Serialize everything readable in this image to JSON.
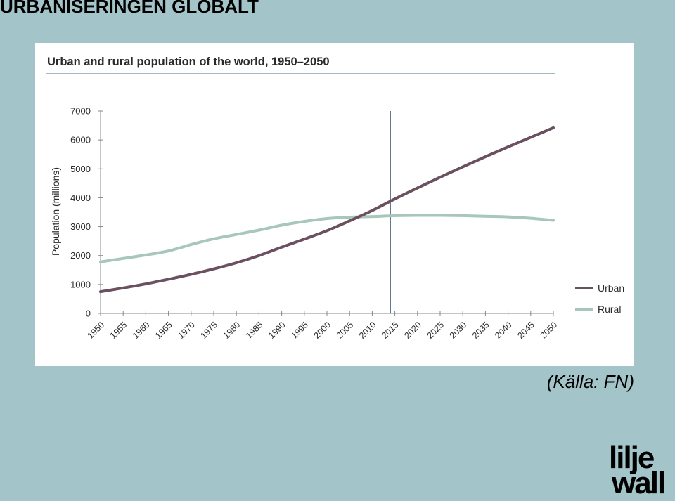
{
  "slide": {
    "title": "URBANISERINGEN GLOBALT",
    "source": "(Källa: FN)",
    "logo_line1": "lilje",
    "logo_line2": "wall"
  },
  "colors": {
    "background": "#a3c4c8",
    "urban": "#6b5060",
    "rural": "#a7c7bb",
    "marker_line": "#3b5b7a",
    "axis": "#888888"
  },
  "chart_data": {
    "type": "line",
    "title": "Urban and rural population of the world, 1950–2050",
    "ylabel": "Population (millions)",
    "xlabel": "",
    "ylim": [
      0,
      7000
    ],
    "yticks": [
      0,
      1000,
      2000,
      3000,
      4000,
      5000,
      6000,
      7000
    ],
    "x": [
      1950,
      1955,
      1960,
      1965,
      1970,
      1975,
      1980,
      1985,
      1990,
      1995,
      2000,
      2005,
      2010,
      2015,
      2020,
      2025,
      2030,
      2035,
      2040,
      2045,
      2050
    ],
    "xticks": [
      "1950",
      "1955",
      "1960",
      "1965",
      "1970",
      "1975",
      "1980",
      "1985",
      "1990",
      "1995",
      "2000",
      "2005",
      "2010",
      "2015",
      "2020",
      "2025",
      "2030",
      "2035",
      "2040",
      "2045",
      "2050"
    ],
    "marker_year": 2014,
    "legend_position": "bottom-right",
    "grid": false,
    "series": [
      {
        "name": "Urban",
        "values": [
          750,
          880,
          1020,
          1180,
          1350,
          1540,
          1750,
          2000,
          2290,
          2570,
          2860,
          3200,
          3560,
          3960,
          4340,
          4710,
          5070,
          5420,
          5760,
          6090,
          6420
        ]
      },
      {
        "name": "Rural",
        "values": [
          1780,
          1900,
          2020,
          2160,
          2380,
          2580,
          2730,
          2880,
          3050,
          3180,
          3280,
          3330,
          3350,
          3380,
          3390,
          3390,
          3380,
          3360,
          3340,
          3290,
          3220
        ]
      }
    ]
  }
}
